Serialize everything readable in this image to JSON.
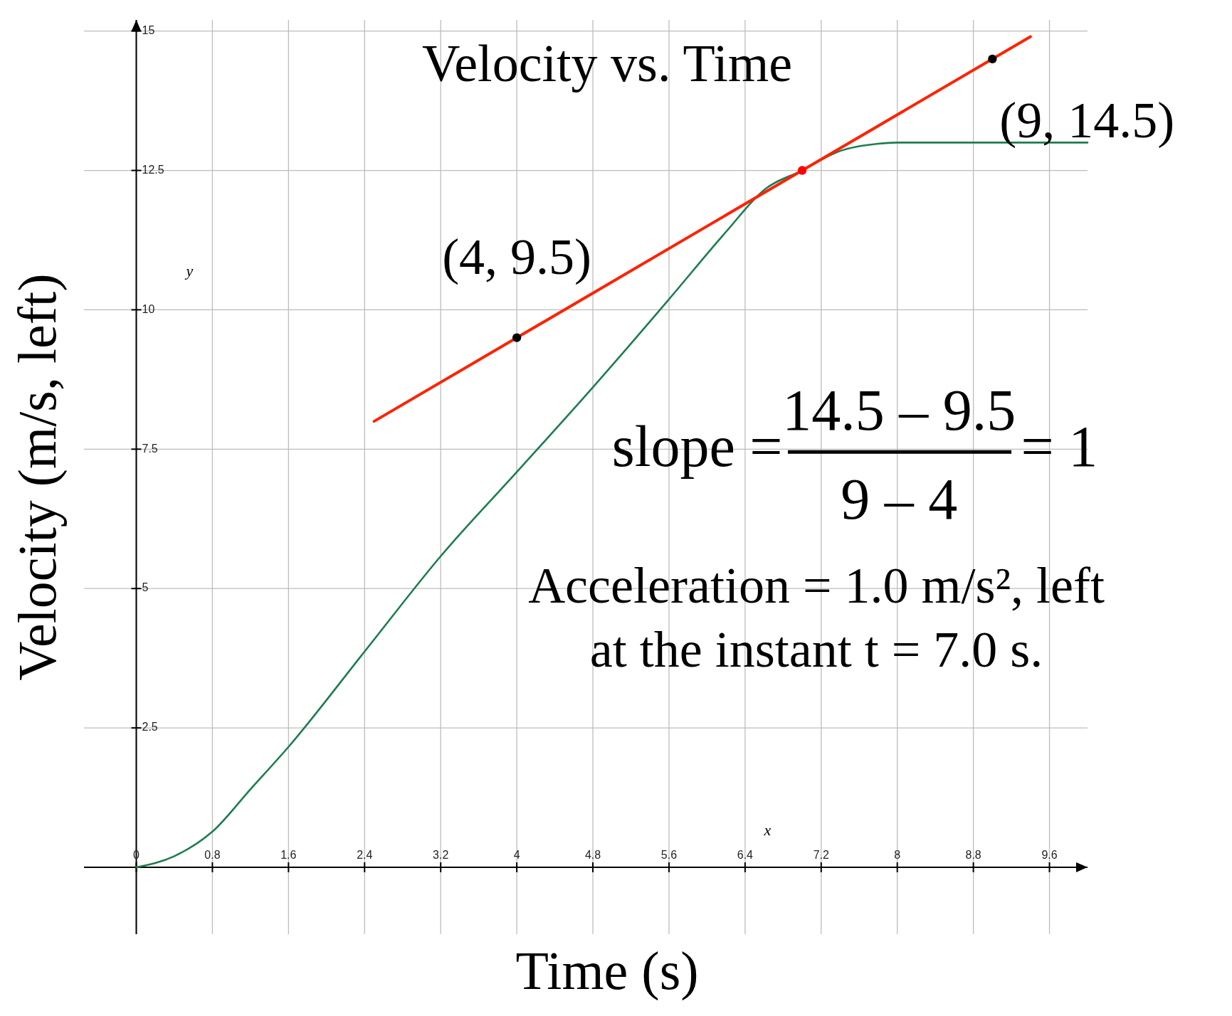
{
  "chart_data": {
    "type": "line",
    "title": "Velocity vs. Time",
    "xlabel": "Time (s)",
    "ylabel": "Velocity (m/s, left)",
    "xlim": [
      -0.55,
      10
    ],
    "ylim": [
      -1.2,
      15.2
    ],
    "xticks": [
      0,
      0.8,
      1.6,
      2.4,
      3.2,
      4,
      4.8,
      5.6,
      6.4,
      7.2,
      8,
      8.8,
      9.6
    ],
    "yticks": [
      2.5,
      5,
      7.5,
      10,
      12.5,
      15
    ],
    "grid": true,
    "series": [
      {
        "color": "#1e7d4f",
        "marker": "none",
        "x": [
          0,
          0.4,
          0.8,
          1.2,
          1.6,
          2.4,
          3.2,
          4,
          4.8,
          5.6,
          6.2,
          6.6,
          7,
          7.4,
          7.8,
          8,
          9,
          10
        ],
        "values": [
          0,
          0.2,
          0.64,
          1.4,
          2.16,
          3.87,
          5.58,
          7.09,
          8.61,
          10.19,
          11.4,
          12.15,
          12.5,
          12.85,
          12.98,
          13,
          13,
          13
        ]
      },
      {
        "type": "line",
        "color": "#ff2200",
        "marker": "none",
        "x": [
          2.5,
          9.4
        ],
        "values": [
          8,
          14.9
        ]
      },
      {
        "type": "scatter",
        "color": "#000000",
        "marker": "circle",
        "x": [
          4,
          9
        ],
        "values": [
          9.5,
          14.5
        ]
      },
      {
        "type": "scatter",
        "color": "#ff0000",
        "marker": "circle",
        "x": [
          7
        ],
        "values": [
          12.5
        ]
      }
    ],
    "annotations": [
      {
        "text": "(4, 9.5)",
        "x": 4,
        "y": 9.5
      },
      {
        "text": "(9, 14.5)",
        "x": 9,
        "y": 14.5
      },
      "slope =",
      "14.5 – 9.5",
      "9 – 4",
      "= 1",
      "Acceleration = 1.0 m/s², left",
      "at the instant t = 7.0 s.",
      "x",
      "y"
    ]
  }
}
